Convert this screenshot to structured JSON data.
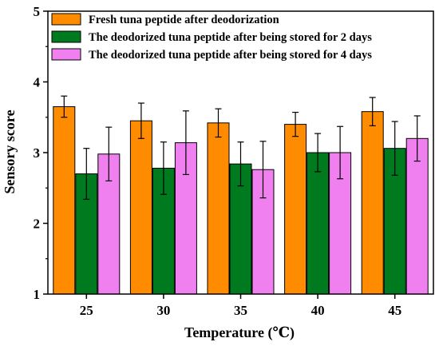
{
  "chart_data": {
    "type": "bar",
    "title": "",
    "xlabel": "Temperature (℃)",
    "ylabel": "Sensory score",
    "categories": [
      "25",
      "30",
      "35",
      "40",
      "45"
    ],
    "ylim": [
      1,
      5
    ],
    "yticks": [
      "1",
      "2",
      "3",
      "4",
      "5"
    ],
    "legend_position": "top",
    "series": [
      {
        "name": "Fresh tuna peptide after deodorization",
        "color": "#FF8C00",
        "values": [
          3.65,
          3.45,
          3.42,
          3.4,
          3.58
        ],
        "errors": [
          0.15,
          0.25,
          0.2,
          0.17,
          0.2
        ]
      },
      {
        "name": "The deodorized tuna peptide after being stored for 2 days",
        "color": "#007A1E",
        "values": [
          2.7,
          2.78,
          2.84,
          3.0,
          3.06
        ],
        "errors": [
          0.36,
          0.37,
          0.31,
          0.27,
          0.38
        ]
      },
      {
        "name": "The deodorized tuna peptide after being stored for 4 days",
        "color": "#F080F0",
        "values": [
          2.98,
          3.14,
          2.76,
          3.0,
          3.2
        ],
        "errors": [
          0.38,
          0.45,
          0.4,
          0.37,
          0.32
        ]
      }
    ]
  }
}
